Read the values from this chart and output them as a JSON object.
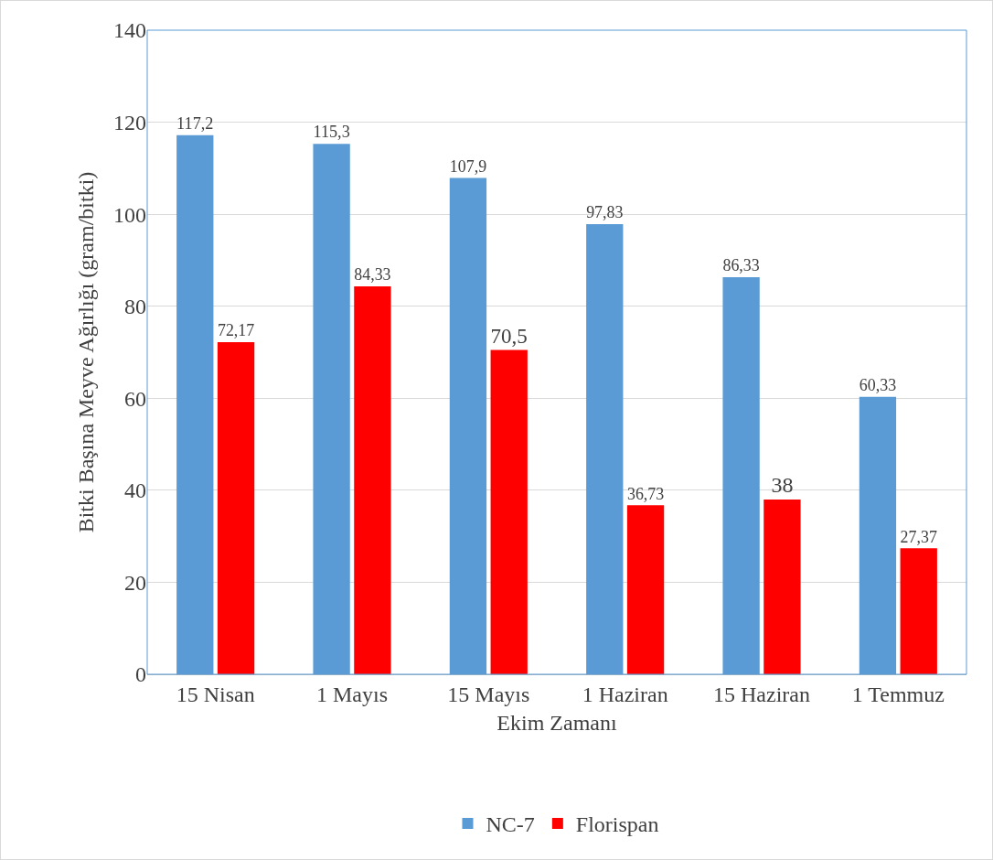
{
  "chart_data": {
    "type": "bar",
    "xlabel": "Ekim Zamanı",
    "ylabel": "Bitki Başına Meyve Ağırlığı (gram/bitki)",
    "categories": [
      "15 Nisan",
      "1 Mayıs",
      "15 Mayıs",
      "1 Haziran",
      "15 Haziran",
      "1 Temmuz"
    ],
    "series": [
      {
        "name": "NC-7",
        "color": "#5b9bd5",
        "values": [
          117.2,
          115.3,
          107.9,
          97.83,
          86.33,
          60.33
        ],
        "value_labels": [
          "117,2",
          "115,3",
          "107,9",
          "97,83",
          "86,33",
          "60,33"
        ]
      },
      {
        "name": "Florispan",
        "color": "#ff0000",
        "values": [
          72.17,
          84.33,
          70.5,
          36.73,
          38,
          27.37
        ],
        "value_labels": [
          "72,17",
          "84,33",
          "70,5",
          "36,73",
          "38",
          "27,37"
        ]
      }
    ],
    "ylim": [
      0,
      140
    ],
    "yticks": [
      0,
      20,
      40,
      60,
      80,
      100,
      120,
      140
    ],
    "grid": "y",
    "legend": "bottom"
  }
}
